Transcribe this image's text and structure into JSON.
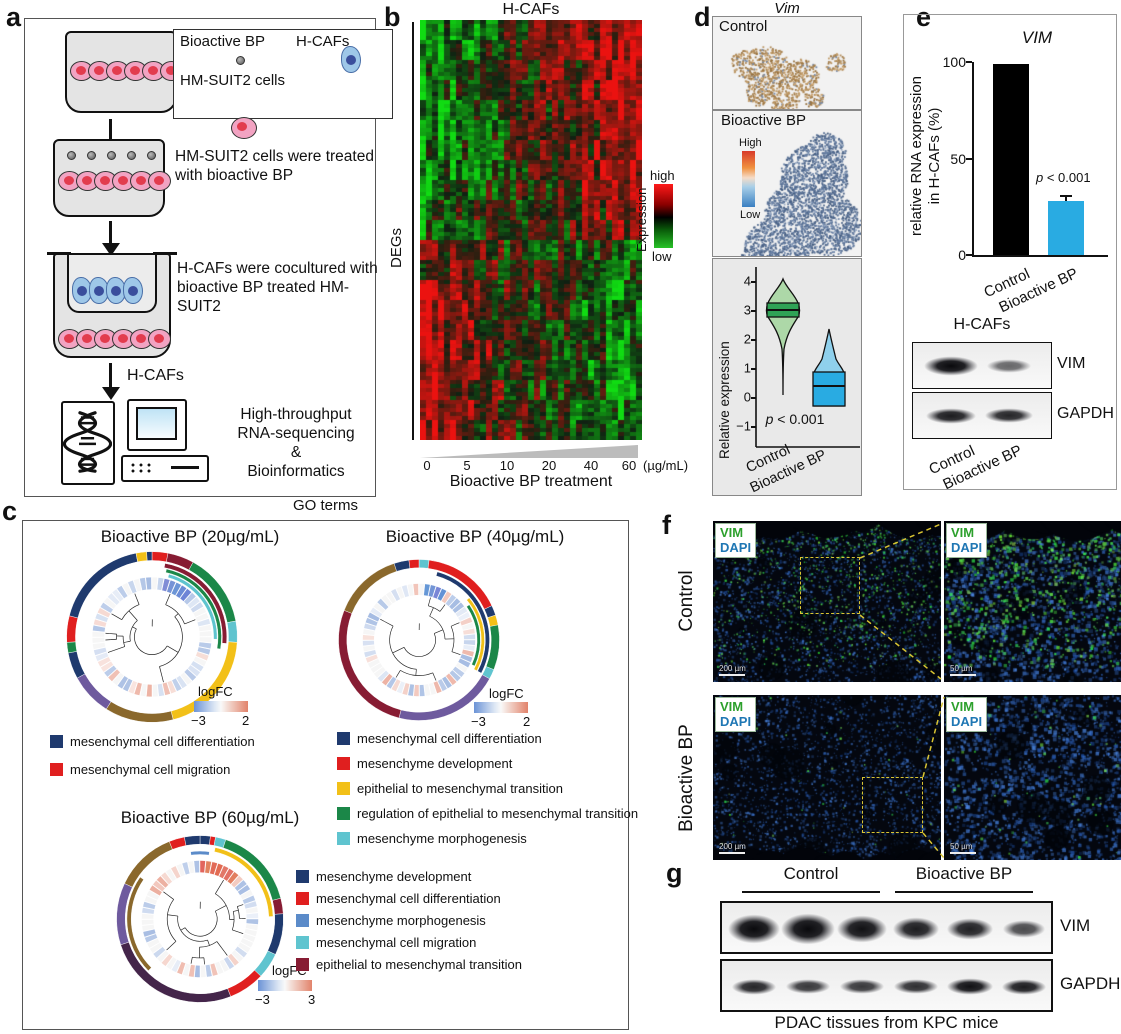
{
  "figure": {
    "a": {
      "label": "a",
      "legend_item1": "Bioactive BP",
      "legend_item2": "H-CAFs",
      "legend_item3": "HM-SUIT2 cells",
      "step2": "HM-SUIT2 cells were treated with bioactive BP",
      "step3": "H-CAFs were cocultured with bioactive BP treated HM-SUIT2",
      "flow_label": "H-CAFs",
      "output_line1": "High-throughput",
      "output_line2": "RNA-sequencing",
      "output_line3": "&",
      "output_line4": "Bioinformatics"
    },
    "b": {
      "label": "b"
    },
    "c": {
      "label": "c",
      "title": "GO terms"
    },
    "d": {
      "label": "d",
      "title": "Vim",
      "control_label": "Control",
      "treated_label": "Bioactive BP",
      "cbar_high": "High",
      "cbar_low": "Low"
    },
    "e": {
      "label": "e",
      "blot_title": "H-CAFs",
      "blot_rows": [
        "VIM",
        "GAPDH"
      ],
      "blot_xlabels": [
        "Control",
        "Bioactive BP"
      ]
    },
    "f": {
      "label": "f",
      "markers": [
        "VIM",
        "DAPI"
      ],
      "marker_colors": {
        "vim": "#2ca02c",
        "dapi": "#1f77b4"
      },
      "rows": [
        {
          "label": "Control",
          "scale_l": "200 µm",
          "scale_r": "50 µm"
        },
        {
          "label": "Bioactive BP",
          "scale_l": "200 µm",
          "scale_r": "50 µm"
        }
      ]
    },
    "g": {
      "label": "g",
      "groups": [
        "Control",
        "Bioactive BP"
      ],
      "bands": [
        "VIM",
        "GAPDH"
      ],
      "caption": "PDAC tissues from KPC mice"
    }
  },
  "chart_data": [
    {
      "type": "heatmap",
      "title": "H-CAFs",
      "ylabel": "DEGs",
      "colorbar_label": "Expression",
      "colorbar_high": "high",
      "colorbar_low": "low",
      "colorscale": {
        "low": "#27c227",
        "mid": "#000000",
        "high": "#ff1a1a"
      },
      "xticks": [
        "0",
        "5",
        "10",
        "20",
        "40",
        "60"
      ],
      "x_unit": "(µg/mL)",
      "xlabel": "Bioactive BP treatment",
      "description": "DEG expression in H-CAFs across increasing bioactive BP doses; pattern shifts from green (low) to red (high) for induced genes and red to green for repressed genes"
    },
    {
      "type": "violin",
      "ylabel": "Relative expression",
      "ylim": [
        -1,
        4
      ],
      "yticks": [
        4,
        3,
        2,
        1,
        0,
        -1
      ],
      "categories": [
        "Control",
        "Bioactive BP"
      ],
      "medians": [
        3.1,
        0.65
      ],
      "iqr": [
        [
          2.85,
          3.35
        ],
        [
          -0.3,
          1.1
        ]
      ],
      "range": [
        [
          0,
          4.1
        ],
        [
          0,
          2.35
        ]
      ],
      "p_sym": "p",
      "p_rest": " < 0.001",
      "colors": [
        "#2fa356",
        "#29abe2"
      ]
    },
    {
      "type": "bar",
      "title": "VIM",
      "ylabel_line1": "relative RNA expression",
      "ylabel_line2": "in H-CAFs (%)",
      "ylim": [
        0,
        100
      ],
      "yticks": [
        100,
        50,
        0
      ],
      "categories": [
        "Control",
        "Bioactive BP"
      ],
      "values": [
        99,
        28
      ],
      "errors": [
        0,
        3
      ],
      "p_sym": "p",
      "p_rest": " < 0.001",
      "colors": [
        "#000000",
        "#29abe2"
      ]
    },
    {
      "type": "circular-dendrogram",
      "title": "Bioactive BP (20µg/mL)",
      "logfc_label": "logFC",
      "logfc_min": "−3",
      "logfc_max": "2",
      "legend": [
        {
          "color": "#1f3a6e",
          "label": "mesenchymal cell differentiation"
        },
        {
          "color": "#e01f1f",
          "label": "mesenchymal cell migration"
        }
      ],
      "ring": [
        [
          "#e01f1f",
          0.03
        ],
        [
          "#871c33",
          0.05
        ],
        [
          "#1b8748",
          0.14
        ],
        [
          "#5fc4cf",
          0.04
        ],
        [
          "#f2c018",
          0.2
        ],
        [
          "#8a682c",
          0.13
        ],
        [
          "#6e5a9e",
          0.08
        ],
        [
          "#1f3a6e",
          0.05
        ],
        [
          "#1b8748",
          0.02
        ],
        [
          "#e01f1f",
          0.05
        ],
        [
          "#1f3a6e",
          0.18
        ],
        [
          "#f2c018",
          0.02
        ],
        [
          "#1f3a6e",
          0.01
        ]
      ],
      "inner_arcs": [
        [
          "#871c33",
          10,
          95,
          80,
          85
        ],
        [
          "#1b8748",
          12,
          100,
          75,
          79
        ],
        [
          "#5fc4cf",
          15,
          92,
          70,
          74
        ]
      ]
    },
    {
      "type": "circular-dendrogram",
      "title": "Bioactive BP (40µg/mL)",
      "logfc_label": "logFC",
      "logfc_min": "−3",
      "logfc_max": "2",
      "legend": [
        {
          "color": "#1f3a6e",
          "label": "mesenchymal cell differentiation"
        },
        {
          "color": "#e01f1f",
          "label": "mesenchyme development"
        },
        {
          "color": "#f2c018",
          "label": "epithelial to mesenchymal transition"
        },
        {
          "color": "#1b8748",
          "label": "regulation of epithelial to mesenchymal transition"
        },
        {
          "color": "#5fc4cf",
          "label": "mesenchyme morphogenesis"
        }
      ],
      "ring": [
        [
          "#5fc4cf",
          0.02
        ],
        [
          "#e01f1f",
          0.16
        ],
        [
          "#1f3a6e",
          0.02
        ],
        [
          "#f2c018",
          0.02
        ],
        [
          "#1b8748",
          0.09
        ],
        [
          "#5fc4cf",
          0.02
        ],
        [
          "#6e5a9e",
          0.21
        ],
        [
          "#871c33",
          0.27
        ],
        [
          "#8a682c",
          0.14
        ],
        [
          "#1f3a6e",
          0.03
        ],
        [
          "#e01f1f",
          0.02
        ]
      ],
      "inner_arcs": [
        [
          "#1f3a6e",
          15,
          118,
          80,
          85
        ],
        [
          "#f2c018",
          50,
          118,
          75,
          79
        ],
        [
          "#1b8748",
          55,
          115,
          70,
          74
        ]
      ]
    },
    {
      "type": "circular-dendrogram",
      "title": "Bioactive BP (60µg/mL)",
      "logfc_label": "logFC",
      "logfc_min": "−3",
      "logfc_max": "3",
      "legend": [
        {
          "color": "#1f3a6e",
          "label": "mesenchyme development"
        },
        {
          "color": "#e01f1f",
          "label": "mesenchymal cell differentiation"
        },
        {
          "color": "#5b8bc9",
          "label": "mesenchyme morphogenesis"
        },
        {
          "color": "#5fc4cf",
          "label": "mesenchymal cell migration"
        },
        {
          "color": "#871c33",
          "label": "epithelial to mesenchymal transition"
        }
      ],
      "ring": [
        [
          "#1f3a6e",
          0.02
        ],
        [
          "#e01f1f",
          0.01
        ],
        [
          "#5fc4cf",
          0.02
        ],
        [
          "#1b8748",
          0.16
        ],
        [
          "#871c33",
          0.03
        ],
        [
          "#1f3a6e",
          0.08
        ],
        [
          "#5fc4cf",
          0.05
        ],
        [
          "#e01f1f",
          0.07
        ],
        [
          "#44254a",
          0.26
        ],
        [
          "#6e5a9e",
          0.12
        ],
        [
          "#8a682c",
          0.12
        ],
        [
          "#e01f1f",
          0.03
        ],
        [
          "#1f3a6e",
          0.03
        ]
      ],
      "inner_arcs": [
        [
          "#f2c018",
          12,
          88,
          80,
          85
        ],
        [
          "#8a682c",
          225,
          305,
          80,
          85
        ],
        [
          "#5b8bc9",
          352,
          368,
          75,
          79
        ]
      ]
    }
  ]
}
